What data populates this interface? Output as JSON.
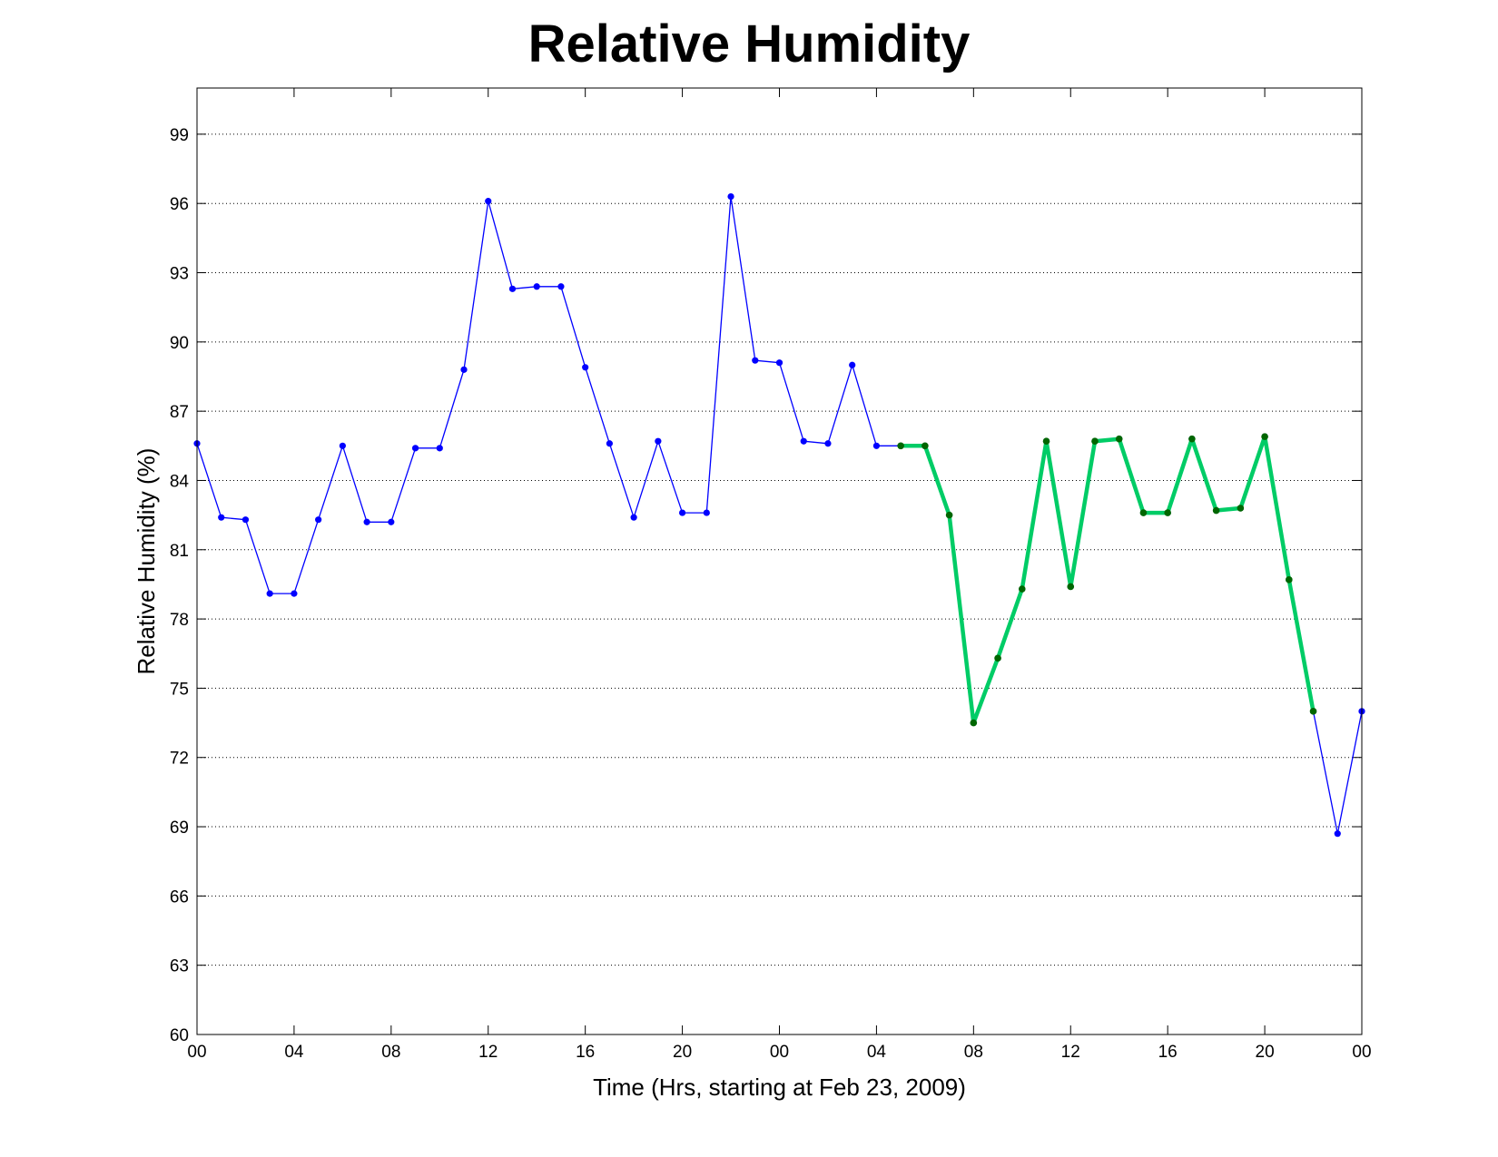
{
  "chart_data": {
    "type": "line",
    "title": "Relative Humidity",
    "xlabel": "Time (Hrs, starting at Feb 23, 2009)",
    "ylabel": "Relative Humidity (%)",
    "xlim": [
      0,
      48
    ],
    "ylim": [
      60,
      101
    ],
    "y_ticks": [
      60,
      63,
      66,
      69,
      72,
      75,
      78,
      81,
      84,
      87,
      90,
      93,
      96,
      99
    ],
    "x_ticks": [
      0,
      4,
      8,
      12,
      16,
      20,
      24,
      28,
      32,
      36,
      40,
      44,
      48
    ],
    "x_tick_labels": [
      "00",
      "04",
      "08",
      "12",
      "16",
      "20",
      "00",
      "04",
      "08",
      "12",
      "16",
      "20",
      "00"
    ],
    "grid": "horizontal dotted",
    "series": [
      {
        "color": "#0000ff",
        "style": "thin line with dot markers",
        "x": [
          0,
          1,
          2,
          3,
          4,
          5,
          6,
          7,
          8,
          9,
          10,
          11,
          12,
          13,
          14,
          15,
          16,
          17,
          18,
          19,
          20,
          21,
          22,
          23,
          24,
          25,
          26,
          27,
          28,
          29,
          30,
          31,
          32,
          33,
          34,
          35,
          36,
          37,
          38,
          39,
          40,
          41,
          42,
          43,
          44,
          45,
          46,
          47,
          48
        ],
        "values": [
          85.6,
          82.4,
          82.3,
          79.1,
          79.1,
          82.3,
          85.5,
          82.2,
          82.2,
          85.4,
          85.4,
          88.8,
          96.1,
          92.3,
          92.4,
          92.4,
          88.9,
          85.6,
          82.4,
          85.7,
          82.6,
          82.6,
          96.3,
          89.2,
          89.1,
          85.7,
          85.6,
          89.0,
          85.5,
          85.5,
          85.5,
          82.5,
          73.5,
          76.3,
          79.3,
          85.7,
          79.4,
          85.7,
          85.8,
          82.6,
          82.6,
          85.8,
          82.7,
          82.8,
          85.9,
          79.7,
          74.0,
          68.7,
          74.0
        ]
      },
      {
        "color": "#00cc66",
        "marker_color": "#006600",
        "style": "thick line with dot markers",
        "x": [
          29,
          30,
          31,
          32,
          33,
          34,
          35,
          36,
          37,
          38,
          39,
          40,
          41,
          42,
          43,
          44,
          45,
          46
        ],
        "values": [
          85.5,
          85.5,
          82.5,
          73.5,
          76.3,
          79.3,
          85.7,
          79.4,
          85.7,
          85.8,
          82.6,
          82.6,
          85.8,
          82.7,
          82.8,
          85.9,
          79.7,
          74.0
        ]
      }
    ]
  }
}
